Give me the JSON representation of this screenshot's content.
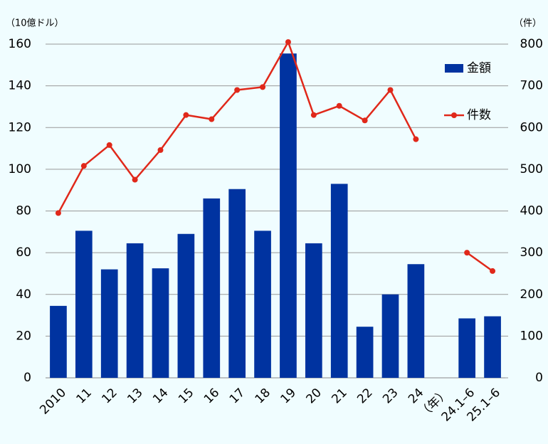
{
  "chart_data": {
    "type": "bar_line",
    "y_label": "（10億ドル）",
    "y2_label": "（件）",
    "categories": [
      "2010",
      "11",
      "12",
      "13",
      "14",
      "15",
      "16",
      "17",
      "18",
      "19",
      "20",
      "21",
      "22",
      "23",
      "24",
      "（年）",
      "24.1–6",
      "25.1–6"
    ],
    "series": [
      {
        "name": "金額",
        "type": "bar",
        "color": "#0033a0",
        "axis": "y",
        "values": [
          34.5,
          70.5,
          52,
          64.5,
          52.5,
          69,
          86,
          90.5,
          70.5,
          155.5,
          64.5,
          93,
          24.5,
          40,
          54.5,
          null,
          28.5,
          29.5
        ]
      },
      {
        "name": "件数",
        "type": "line",
        "color": "#e0281a",
        "axis": "y2",
        "values": [
          395,
          508,
          558,
          475,
          546,
          630,
          620,
          690,
          697,
          805,
          630,
          652,
          617,
          690,
          572,
          null,
          300,
          256
        ]
      }
    ],
    "ylim": [
      0,
      160
    ],
    "yticks": [
      0,
      20,
      40,
      60,
      80,
      100,
      120,
      140,
      160
    ],
    "y2lim": [
      0,
      800
    ],
    "y2ticks": [
      0,
      100,
      200,
      300,
      400,
      500,
      600,
      700,
      800
    ],
    "grid": true,
    "legend": "upper right"
  }
}
